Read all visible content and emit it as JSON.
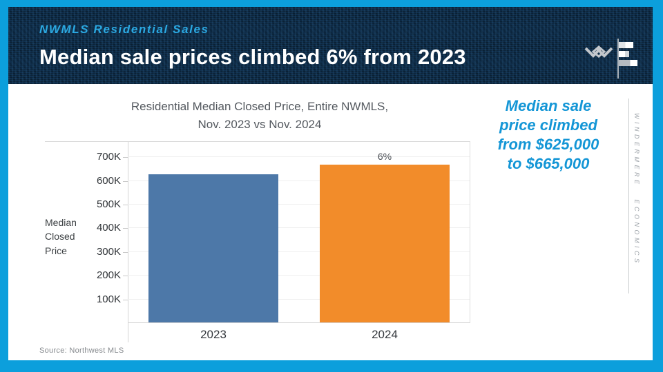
{
  "slide": {
    "eyebrow": "NWMLS Residential Sales",
    "title": "Median sale prices climbed 6% from 2023",
    "source": "Source: Northwest MLS",
    "brand_vertical": "WINDERMERE ECONOMICS",
    "callout": {
      "lines": [
        "Median sale",
        "price climbed",
        "from $625,000",
        "to $665,000"
      ]
    },
    "colors": {
      "accent_cyan": "#0C9FDC",
      "header_navy": "#0E2C49",
      "eyebrow_cyan": "#2BA9E2",
      "callout_cyan": "#1496D6",
      "bar_2023_blue": "#4D78A8",
      "bar_2024_orange": "#F28C2A"
    }
  },
  "chart_data": {
    "type": "bar",
    "title": "Residential Median Closed Price, Entire NWMLS, Nov. 2023 vs Nov. 2024",
    "title_lines": [
      "Residential Median Closed Price, Entire NWMLS,",
      "Nov. 2023 vs Nov. 2024"
    ],
    "categories": [
      "2023",
      "2024"
    ],
    "values": [
      625000,
      665000
    ],
    "series_colors": [
      "#4D78A8",
      "#F28C2A"
    ],
    "bar_labels": [
      "",
      "6%"
    ],
    "ylabel": "Median Closed Price",
    "ylabel_lines": [
      "Median",
      "Closed",
      "Price"
    ],
    "yticks": [
      {
        "value": 100000,
        "label": "100K"
      },
      {
        "value": 200000,
        "label": "200K"
      },
      {
        "value": 300000,
        "label": "300K"
      },
      {
        "value": 400000,
        "label": "400K"
      },
      {
        "value": 500000,
        "label": "500K"
      },
      {
        "value": 600000,
        "label": "600K"
      },
      {
        "value": 700000,
        "label": "700K"
      }
    ],
    "ylim": [
      0,
      765000
    ],
    "grid": true,
    "legend": "none"
  }
}
